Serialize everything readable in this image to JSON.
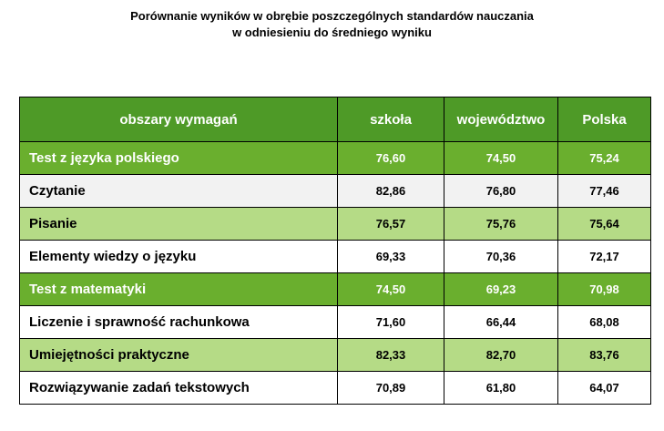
{
  "title": {
    "line1": "Porównanie wyników w obrębie poszczególnych standardów nauczania",
    "line2": "w odniesieniu do średniego wyniku"
  },
  "table": {
    "headers": [
      "obszary wymagań",
      "szkoła",
      "województwo",
      "Polska"
    ],
    "rows": [
      {
        "label": "Test z języka polskiego",
        "szkola": "76,60",
        "wojewodztwo": "74,50",
        "polska": "75,24"
      },
      {
        "label": "Czytanie",
        "szkola": "82,86",
        "wojewodztwo": "76,80",
        "polska": "77,46"
      },
      {
        "label": "Pisanie",
        "szkola": "76,57",
        "wojewodztwo": "75,76",
        "polska": "75,64"
      },
      {
        "label": "Elementy wiedzy o języku",
        "szkola": "69,33",
        "wojewodztwo": "70,36",
        "polska": "72,17"
      },
      {
        "label": "Test z matematyki",
        "szkola": "74,50",
        "wojewodztwo": "69,23",
        "polska": "70,98"
      },
      {
        "label": "Liczenie i sprawność rachunkowa",
        "szkola": "71,60",
        "wojewodztwo": "66,44",
        "polska": "68,08"
      },
      {
        "label": "Umiejętności praktyczne",
        "szkola": "82,33",
        "wojewodztwo": "82,70",
        "polska": "83,76"
      },
      {
        "label": "Rozwiązywanie zadań tekstowych",
        "szkola": "70,89",
        "wojewodztwo": "61,80",
        "polska": "64,07"
      }
    ]
  },
  "colors": {
    "header": "#4e9a27",
    "main_row": "#6aaf2e",
    "sub_green_row": "#b5db86",
    "sub_gray_row": "#f2f2f2"
  }
}
